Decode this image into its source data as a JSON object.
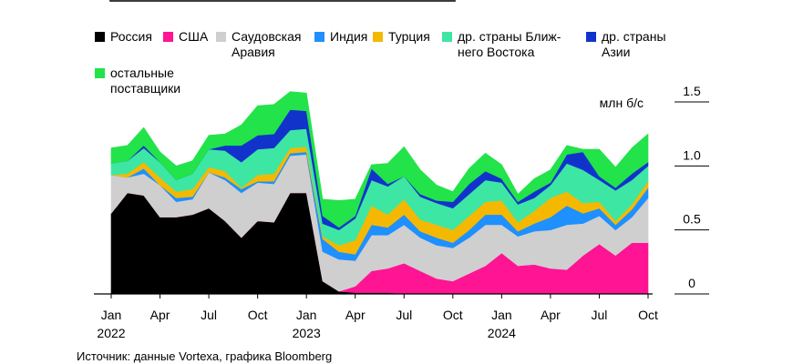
{
  "colors": {
    "russia": "#000000",
    "usa": "#ff1493",
    "saudi": "#cfcfcf",
    "india": "#1e90ff",
    "turkey": "#f5b800",
    "me_other": "#3ee6a4",
    "asia_other": "#1133cc",
    "rest": "#22e34a"
  },
  "source_note": "Источник: данные Vortexa, графика Bloomberg",
  "chart_data": {
    "type": "area",
    "stacked": true,
    "ylabel": "млн б/с",
    "ylim": [
      0,
      1.5
    ],
    "yticks": [
      "0",
      "0.5",
      "1.0",
      "1.5"
    ],
    "ytick_values": [
      0,
      0.5,
      1.0,
      1.5
    ],
    "x": [
      "2022-01",
      "2022-02",
      "2022-03",
      "2022-04",
      "2022-05",
      "2022-06",
      "2022-07",
      "2022-08",
      "2022-09",
      "2022-10",
      "2022-11",
      "2022-12",
      "2023-01",
      "2023-02",
      "2023-03",
      "2023-04",
      "2023-05",
      "2023-06",
      "2023-07",
      "2023-08",
      "2023-09",
      "2023-10",
      "2023-11",
      "2023-12",
      "2024-01",
      "2024-02",
      "2024-03",
      "2024-04",
      "2024-05",
      "2024-06",
      "2024-07",
      "2024-08",
      "2024-09",
      "2024-10"
    ],
    "x_tick_labels": [
      {
        "label": "Jan",
        "year": "2022",
        "index": 0
      },
      {
        "label": "Apr",
        "year": "",
        "index": 3
      },
      {
        "label": "Jul",
        "year": "",
        "index": 6
      },
      {
        "label": "Oct",
        "year": "",
        "index": 9
      },
      {
        "label": "Jan",
        "year": "2023",
        "index": 12
      },
      {
        "label": "Apr",
        "year": "",
        "index": 15
      },
      {
        "label": "Jul",
        "year": "",
        "index": 18
      },
      {
        "label": "Oct",
        "year": "",
        "index": 21
      },
      {
        "label": "Jan",
        "year": "2024",
        "index": 24
      },
      {
        "label": "Apr",
        "year": "",
        "index": 27
      },
      {
        "label": "Jul",
        "year": "",
        "index": 30
      },
      {
        "label": "Oct",
        "year": "",
        "index": 33
      }
    ],
    "series": [
      {
        "name": "Россия",
        "key": "russia",
        "values": [
          0.63,
          0.79,
          0.77,
          0.6,
          0.6,
          0.62,
          0.67,
          0.57,
          0.44,
          0.57,
          0.56,
          0.79,
          0.79,
          0.1,
          0.02,
          0.01,
          0.01,
          0.01,
          0,
          0,
          0,
          0,
          0,
          0,
          0,
          0,
          0,
          0,
          0,
          0,
          0,
          0,
          0,
          0
        ]
      },
      {
        "name": "США",
        "key": "usa",
        "values": [
          0,
          0,
          0,
          0,
          0,
          0,
          0,
          0,
          0,
          0,
          0,
          0,
          0,
          0,
          0,
          0.05,
          0.17,
          0.19,
          0.24,
          0.18,
          0.12,
          0.1,
          0.16,
          0.22,
          0.32,
          0.22,
          0.23,
          0.2,
          0.19,
          0.3,
          0.39,
          0.3,
          0.4,
          0.4
        ]
      },
      {
        "name": "Саудовская\nАравия",
        "key": "saudi",
        "values": [
          0.3,
          0.12,
          0.17,
          0.25,
          0.12,
          0.12,
          0.28,
          0.32,
          0.35,
          0.3,
          0.3,
          0.29,
          0.3,
          0.23,
          0.25,
          0.2,
          0.28,
          0.26,
          0.3,
          0.26,
          0.26,
          0.26,
          0.28,
          0.32,
          0.22,
          0.23,
          0.26,
          0.3,
          0.35,
          0.25,
          0.22,
          0.2,
          0.2,
          0.35
        ]
      },
      {
        "name": "Индия",
        "key": "india",
        "values": [
          0,
          0,
          0.04,
          0,
          0.03,
          0.02,
          0,
          0.02,
          0.03,
          0.01,
          0.02,
          0.02,
          0.02,
          0.1,
          0.06,
          0.05,
          0.08,
          0.06,
          0.08,
          0.05,
          0.06,
          0.04,
          0.06,
          0.08,
          0.08,
          0.04,
          0.06,
          0.1,
          0.15,
          0.08,
          0.06,
          0.04,
          0.06,
          0.08
        ]
      },
      {
        "name": "Турция",
        "key": "turkey",
        "values": [
          0,
          0.03,
          0.05,
          0.06,
          0.05,
          0.06,
          0.04,
          0.05,
          0.01,
          0.05,
          0.06,
          0.04,
          0.04,
          0.02,
          0.05,
          0.11,
          0.15,
          0.1,
          0.12,
          0.09,
          0.1,
          0.1,
          0.11,
          0.1,
          0.11,
          0.07,
          0.1,
          0.15,
          0.11,
          0.08,
          0.05,
          0.03,
          0.04,
          0.05
        ]
      },
      {
        "name": "др. страны Ближ-\nнего Востока",
        "key": "me_other",
        "values": [
          0.09,
          0.1,
          0.11,
          0.12,
          0.09,
          0.12,
          0.14,
          0.16,
          0.2,
          0.2,
          0.2,
          0.14,
          0.14,
          0.1,
          0.12,
          0.17,
          0.2,
          0.22,
          0.18,
          0.18,
          0.17,
          0.17,
          0.17,
          0.17,
          0.14,
          0.14,
          0.1,
          0.1,
          0.22,
          0.26,
          0.17,
          0.24,
          0.19,
          0.12
        ]
      },
      {
        "name": "др. страны\nАзии",
        "key": "asia_other",
        "values": [
          0,
          0,
          0.02,
          0,
          0,
          0,
          0,
          0.04,
          0.13,
          0.11,
          0.11,
          0.16,
          0.14,
          0.06,
          0.02,
          0.02,
          0.09,
          0.02,
          0,
          0.02,
          0.02,
          0.05,
          0.08,
          0.07,
          0.03,
          0.02,
          0.05,
          0.02,
          0.07,
          0.14,
          0.03,
          0.02,
          0.05,
          0.03
        ]
      },
      {
        "name": "остальные\nпоставщики",
        "key": "rest",
        "values": [
          0.12,
          0.12,
          0.14,
          0.08,
          0.11,
          0.1,
          0.11,
          0.09,
          0.16,
          0.23,
          0.23,
          0.14,
          0.14,
          0.13,
          0.21,
          0.13,
          0.03,
          0.16,
          0.23,
          0.19,
          0.12,
          0.08,
          0.12,
          0.14,
          0.11,
          0.06,
          0.1,
          0.1,
          0.07,
          0.02,
          0.21,
          0.16,
          0.2,
          0.22
        ]
      }
    ]
  }
}
